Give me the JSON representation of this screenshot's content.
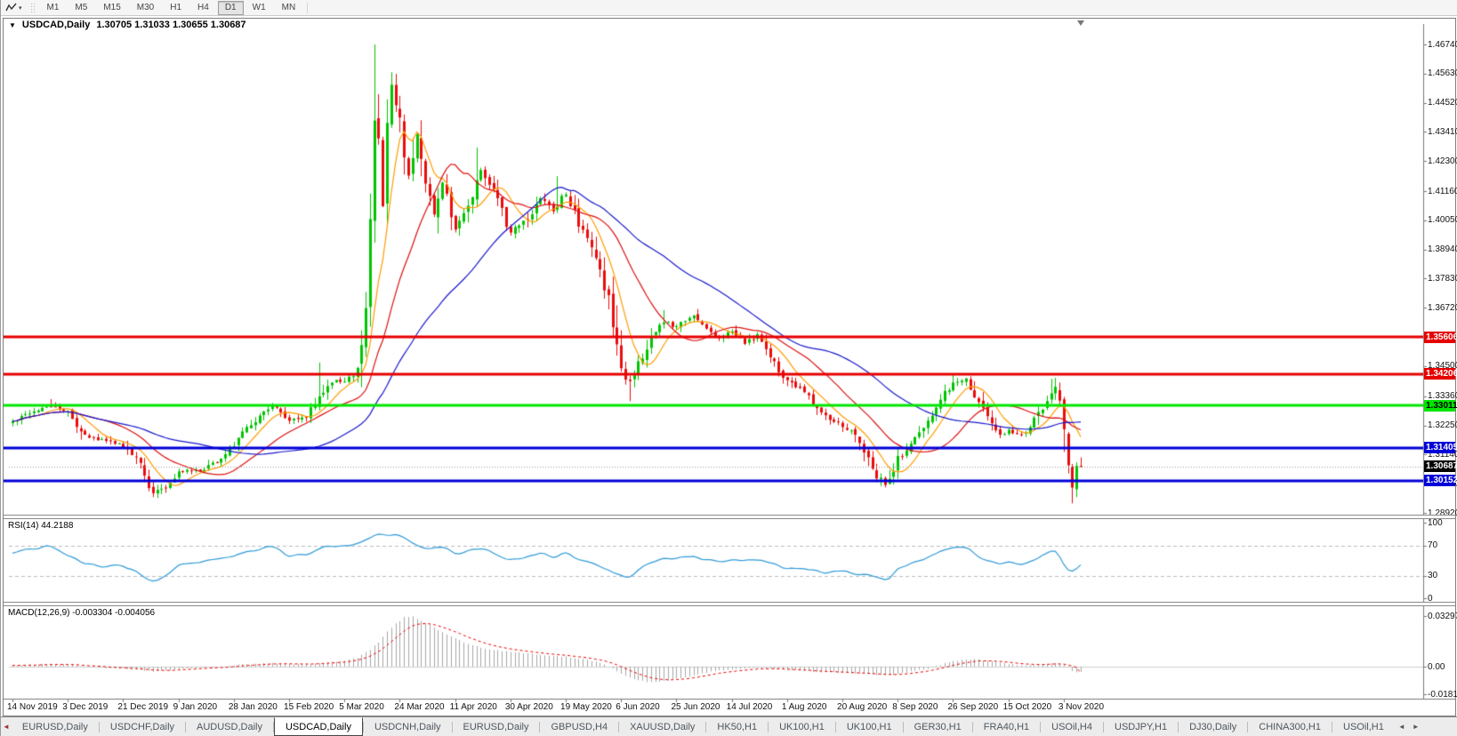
{
  "toolbar": {
    "timeframes": [
      "M1",
      "M5",
      "M15",
      "M30",
      "H1",
      "H4",
      "D1",
      "W1",
      "MN"
    ],
    "active_timeframe": "D1"
  },
  "icons": {
    "chart_menu": "▼",
    "dropdown_caret": "▾",
    "tab_left_mark": "◄",
    "scroll_left": "◄",
    "scroll_right": "►"
  },
  "chart": {
    "title_symbol": "USDCAD,Daily",
    "title_ohlc": "1.30705 1.31033 1.30655 1.30687"
  },
  "chart_data": {
    "type": "candlestick",
    "symbol": "USDCAD",
    "timeframe": "Daily",
    "open": 1.30705,
    "high": 1.31033,
    "low": 1.30655,
    "close": 1.30687,
    "candle_count": 252,
    "colors": {
      "bull": "#00c400",
      "bear": "#ea0c0c",
      "axis_text": "#111111",
      "rsi_line": "#2e9ad8",
      "macd_hist": "#a8a8a8",
      "macd_signal": "#ee0000"
    },
    "y_ticks": [
      1.4674,
      1.4563,
      1.4452,
      1.4341,
      1.423,
      1.4116,
      1.4005,
      1.3894,
      1.3783,
      1.3672,
      1.3561,
      1.345,
      1.3336,
      1.3225,
      1.3114,
      1.3003,
      1.2892
    ],
    "x_ticks": [
      "14 Nov 2019",
      "3 Dec 2019",
      "21 Dec 2019",
      "9 Jan 2020",
      "28 Jan 2020",
      "15 Feb 2020",
      "5 Mar 2020",
      "24 Mar 2020",
      "11 Apr 2020",
      "30 Apr 2020",
      "19 May 2020",
      "6 Jun 2020",
      "25 Jun 2020",
      "14 Jul 2020",
      "1 Aug 2020",
      "20 Aug 2020",
      "8 Sep 2020",
      "26 Sep 2020",
      "15 Oct 2020",
      "3 Nov 2020"
    ],
    "horizontal_lines": [
      {
        "price": 1.35606,
        "color": "#e60000",
        "width": 3
      },
      {
        "price": 1.34206,
        "color": "#e60000",
        "width": 3
      },
      {
        "price": 1.33011,
        "color": "#00e600",
        "width": 3
      },
      {
        "price": 1.31405,
        "color": "#0000d8",
        "width": 3
      },
      {
        "price": 1.30152,
        "color": "#0000d8",
        "width": 3
      }
    ],
    "current_price_line": {
      "price": 1.30687,
      "color": "#999999"
    },
    "price_tags": [
      {
        "value": "1.35606",
        "price": 1.35606,
        "bg": "#e60000",
        "fg": "#ffffff"
      },
      {
        "value": "1.34206",
        "price": 1.34206,
        "bg": "#e60000",
        "fg": "#ffffff"
      },
      {
        "value": "1.33011",
        "price": 1.33011,
        "bg": "#00e600",
        "fg": "#000000"
      },
      {
        "value": "1.31405",
        "price": 1.31405,
        "bg": "#0000d8",
        "fg": "#ffffff"
      },
      {
        "value": "1.30687",
        "price": 1.30687,
        "bg": "#000000",
        "fg": "#ffffff"
      },
      {
        "value": "1.30152",
        "price": 1.30152,
        "bg": "#0000d8",
        "fg": "#ffffff"
      }
    ],
    "moving_averages": [
      {
        "period": 8,
        "color": "#ff9c00"
      },
      {
        "period": 20,
        "color": "#dd1111"
      },
      {
        "period": 45,
        "color": "#1a1acd"
      }
    ],
    "price_anchors": [
      [
        0,
        1.3235
      ],
      [
        4,
        1.327
      ],
      [
        9,
        1.33
      ],
      [
        13,
        1.3275
      ],
      [
        17,
        1.318
      ],
      [
        22,
        1.3165
      ],
      [
        26,
        1.3145
      ],
      [
        30,
        1.3075
      ],
      [
        33,
        1.2965
      ],
      [
        36,
        1.2995
      ],
      [
        39,
        1.3048
      ],
      [
        45,
        1.3055
      ],
      [
        49,
        1.31
      ],
      [
        52,
        1.3155
      ],
      [
        57,
        1.3245
      ],
      [
        61,
        1.33
      ],
      [
        65,
        1.3248
      ],
      [
        69,
        1.326
      ],
      [
        72,
        1.333
      ],
      [
        75,
        1.3395
      ],
      [
        78,
        1.3385
      ],
      [
        81,
        1.344
      ],
      [
        83,
        1.37
      ],
      [
        84,
        1.398
      ],
      [
        85,
        1.438
      ],
      [
        86,
        1.428
      ],
      [
        87,
        1.405
      ],
      [
        88,
        1.435
      ],
      [
        89,
        1.452
      ],
      [
        91,
        1.438
      ],
      [
        93,
        1.418
      ],
      [
        95,
        1.433
      ],
      [
        97,
        1.415
      ],
      [
        99,
        1.403
      ],
      [
        101,
        1.415
      ],
      [
        104,
        1.398
      ],
      [
        107,
        1.406
      ],
      [
        110,
        1.419
      ],
      [
        113,
        1.411
      ],
      [
        117,
        1.396
      ],
      [
        121,
        1.401
      ],
      [
        124,
        1.409
      ],
      [
        127,
        1.404
      ],
      [
        130,
        1.411
      ],
      [
        133,
        1.399
      ],
      [
        136,
        1.391
      ],
      [
        139,
        1.376
      ],
      [
        141,
        1.363
      ],
      [
        143,
        1.343
      ],
      [
        145,
        1.339
      ],
      [
        147,
        1.346
      ],
      [
        150,
        1.356
      ],
      [
        153,
        1.362
      ],
      [
        156,
        1.36
      ],
      [
        160,
        1.364
      ],
      [
        163,
        1.3585
      ],
      [
        166,
        1.356
      ],
      [
        169,
        1.358
      ],
      [
        172,
        1.3535
      ],
      [
        175,
        1.357
      ],
      [
        178,
        1.3485
      ],
      [
        182,
        1.3395
      ],
      [
        186,
        1.335
      ],
      [
        189,
        1.3285
      ],
      [
        192,
        1.3245
      ],
      [
        195,
        1.3225
      ],
      [
        198,
        1.3185
      ],
      [
        201,
        1.3095
      ],
      [
        203,
        1.3035
      ],
      [
        205,
        1.3005
      ],
      [
        207,
        1.306
      ],
      [
        208,
        1.3095
      ],
      [
        211,
        1.316
      ],
      [
        214,
        1.3205
      ],
      [
        217,
        1.328
      ],
      [
        219,
        1.335
      ],
      [
        221,
        1.3385
      ],
      [
        224,
        1.34
      ],
      [
        226,
        1.3335
      ],
      [
        229,
        1.3255
      ],
      [
        232,
        1.3185
      ],
      [
        234,
        1.3205
      ],
      [
        237,
        1.3185
      ],
      [
        240,
        1.3245
      ],
      [
        243,
        1.3325
      ],
      [
        245,
        1.3385
      ],
      [
        247,
        1.3205
      ],
      [
        248,
        1.31
      ],
      [
        249,
        1.2995
      ],
      [
        250,
        1.3055
      ],
      [
        251,
        1.30687
      ]
    ],
    "key_extremes": [
      {
        "i": 9,
        "high": 1.3325
      },
      {
        "i": 33,
        "low": 1.2952
      },
      {
        "i": 72,
        "high": 1.3464
      },
      {
        "i": 85,
        "high": 1.4674
      },
      {
        "i": 89,
        "high": 1.4568
      },
      {
        "i": 109,
        "high": 1.4282
      },
      {
        "i": 128,
        "high": 1.4173
      },
      {
        "i": 145,
        "low": 1.3317
      },
      {
        "i": 153,
        "high": 1.3664
      },
      {
        "i": 204,
        "low": 1.2994
      },
      {
        "i": 221,
        "high": 1.3421
      },
      {
        "i": 244,
        "high": 1.3402
      },
      {
        "i": 249,
        "low": 1.2928
      }
    ],
    "rsi": {
      "label": "RSI(14) 44.2188",
      "value": 44.2188,
      "levels": [
        70,
        30
      ],
      "axis_ticks": [
        100,
        70,
        30,
        0
      ],
      "anchors": [
        [
          0,
          62
        ],
        [
          5,
          65
        ],
        [
          9,
          68
        ],
        [
          13,
          58
        ],
        [
          17,
          45
        ],
        [
          22,
          43
        ],
        [
          26,
          41
        ],
        [
          30,
          33
        ],
        [
          33,
          20
        ],
        [
          36,
          30
        ],
        [
          39,
          43
        ],
        [
          45,
          49
        ],
        [
          49,
          53
        ],
        [
          52,
          56
        ],
        [
          57,
          63
        ],
        [
          61,
          69
        ],
        [
          65,
          55
        ],
        [
          69,
          58
        ],
        [
          72,
          65
        ],
        [
          75,
          70
        ],
        [
          78,
          68
        ],
        [
          81,
          72
        ],
        [
          84,
          80
        ],
        [
          86,
          86
        ],
        [
          88,
          84
        ],
        [
          90,
          85
        ],
        [
          93,
          76
        ],
        [
          97,
          64
        ],
        [
          101,
          68
        ],
        [
          104,
          59
        ],
        [
          107,
          62
        ],
        [
          110,
          66
        ],
        [
          113,
          60
        ],
        [
          117,
          50
        ],
        [
          121,
          55
        ],
        [
          124,
          60
        ],
        [
          127,
          55
        ],
        [
          130,
          60
        ],
        [
          133,
          52
        ],
        [
          136,
          47
        ],
        [
          139,
          40
        ],
        [
          141,
          35
        ],
        [
          143,
          30
        ],
        [
          145,
          29
        ],
        [
          147,
          38
        ],
        [
          150,
          47
        ],
        [
          153,
          53
        ],
        [
          156,
          51
        ],
        [
          160,
          56
        ],
        [
          163,
          51
        ],
        [
          166,
          49
        ],
        [
          169,
          52
        ],
        [
          172,
          48
        ],
        [
          175,
          52
        ],
        [
          178,
          45
        ],
        [
          182,
          40
        ],
        [
          186,
          39
        ],
        [
          189,
          36
        ],
        [
          192,
          35
        ],
        [
          195,
          37
        ],
        [
          198,
          34
        ],
        [
          201,
          31
        ],
        [
          204,
          27
        ],
        [
          206,
          25
        ],
        [
          208,
          40
        ],
        [
          211,
          47
        ],
        [
          214,
          52
        ],
        [
          217,
          59
        ],
        [
          219,
          64
        ],
        [
          221,
          66
        ],
        [
          224,
          69
        ],
        [
          226,
          58
        ],
        [
          229,
          50
        ],
        [
          232,
          44
        ],
        [
          234,
          47
        ],
        [
          237,
          44
        ],
        [
          240,
          52
        ],
        [
          243,
          60
        ],
        [
          245,
          64
        ],
        [
          247,
          44
        ],
        [
          248,
          38
        ],
        [
          249,
          32
        ],
        [
          250,
          41
        ],
        [
          251,
          44.2
        ]
      ]
    },
    "macd": {
      "label": "MACD(12,26,9) -0.003304 -0.004056",
      "macd_value": -0.003304,
      "signal_value": -0.004056,
      "axis_ticks": [
        {
          "label": "0.032972",
          "value": 0.032972
        },
        {
          "label": "0.00",
          "value": 0
        },
        {
          "label": "-0.01815",
          "value": -0.01815
        }
      ],
      "anchors": [
        [
          0,
          0.0008
        ],
        [
          5,
          0.0012
        ],
        [
          9,
          0.0018
        ],
        [
          13,
          0.0014
        ],
        [
          17,
          0.0002
        ],
        [
          22,
          -0.0008
        ],
        [
          26,
          -0.0012
        ],
        [
          30,
          -0.0022
        ],
        [
          33,
          -0.003
        ],
        [
          36,
          -0.0026
        ],
        [
          39,
          -0.0018
        ],
        [
          45,
          -0.0006
        ],
        [
          49,
          0.0002
        ],
        [
          52,
          0.001
        ],
        [
          57,
          0.0018
        ],
        [
          61,
          0.0024
        ],
        [
          65,
          0.0018
        ],
        [
          69,
          0.0014
        ],
        [
          72,
          0.0022
        ],
        [
          75,
          0.0032
        ],
        [
          78,
          0.004
        ],
        [
          81,
          0.006
        ],
        [
          84,
          0.011
        ],
        [
          86,
          0.016
        ],
        [
          88,
          0.023
        ],
        [
          90,
          0.028
        ],
        [
          92,
          0.032
        ],
        [
          94,
          0.0325
        ],
        [
          96,
          0.03
        ],
        [
          98,
          0.027
        ],
        [
          100,
          0.024
        ],
        [
          102,
          0.021
        ],
        [
          104,
          0.0185
        ],
        [
          106,
          0.016
        ],
        [
          108,
          0.014
        ],
        [
          110,
          0.0125
        ],
        [
          113,
          0.011
        ],
        [
          117,
          0.0095
        ],
        [
          121,
          0.0085
        ],
        [
          124,
          0.0078
        ],
        [
          127,
          0.007
        ],
        [
          130,
          0.0065
        ],
        [
          133,
          0.0052
        ],
        [
          136,
          0.0038
        ],
        [
          139,
          0.0015
        ],
        [
          141,
          -0.001
        ],
        [
          143,
          -0.0045
        ],
        [
          145,
          -0.007
        ],
        [
          147,
          -0.0088
        ],
        [
          149,
          -0.0098
        ],
        [
          151,
          -0.01
        ],
        [
          153,
          -0.0094
        ],
        [
          156,
          -0.008
        ],
        [
          160,
          -0.0055
        ],
        [
          163,
          -0.0038
        ],
        [
          166,
          -0.0026
        ],
        [
          169,
          -0.0018
        ],
        [
          172,
          -0.0012
        ],
        [
          175,
          -0.0008
        ],
        [
          178,
          -0.0012
        ],
        [
          182,
          -0.002
        ],
        [
          186,
          -0.0028
        ],
        [
          189,
          -0.0034
        ],
        [
          192,
          -0.0038
        ],
        [
          195,
          -0.004
        ],
        [
          198,
          -0.0044
        ],
        [
          201,
          -0.005
        ],
        [
          204,
          -0.0056
        ],
        [
          206,
          -0.0058
        ],
        [
          208,
          -0.0048
        ],
        [
          211,
          -0.0034
        ],
        [
          214,
          -0.0018
        ],
        [
          217,
          0.0004
        ],
        [
          219,
          0.0022
        ],
        [
          221,
          0.0036
        ],
        [
          224,
          0.0046
        ],
        [
          226,
          0.0048
        ],
        [
          229,
          0.004
        ],
        [
          232,
          0.0026
        ],
        [
          234,
          0.0018
        ],
        [
          237,
          0.001
        ],
        [
          240,
          0.0008
        ],
        [
          243,
          0.0016
        ],
        [
          245,
          0.0024
        ],
        [
          247,
          0.0008
        ],
        [
          248,
          -0.001
        ],
        [
          249,
          -0.0028
        ],
        [
          250,
          -0.0036
        ],
        [
          251,
          -0.0033
        ]
      ]
    }
  },
  "tabs": {
    "items": [
      "EURUSD,Daily",
      "USDCHF,Daily",
      "AUDUSD,Daily",
      "USDCAD,Daily",
      "USDCNH,Daily",
      "EURUSD,Daily",
      "GBPUSD,H4",
      "XAUUSD,Daily",
      "HK50,H1",
      "UK100,H1",
      "UK100,H1",
      "GER30,H1",
      "FRA40,H1",
      "USOil,H4",
      "USDJPY,H1",
      "DJ30,Daily",
      "CHINA300,H1",
      "USOil,H1"
    ],
    "active_index": 3
  }
}
